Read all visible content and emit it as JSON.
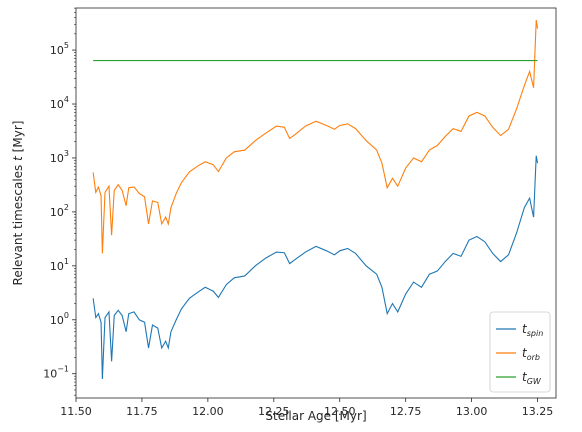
{
  "chart_data": {
    "type": "line",
    "xlabel": "Stellar Age [Myr]",
    "ylabel": "Relevant timescales",
    "ylabel_var": "t",
    "ylabel_unit": "[Myr]",
    "xlim": [
      11.5,
      13.32
    ],
    "ylim_log10": [
      -1.45,
      5.78
    ],
    "y_scale": "log",
    "grid": false,
    "legend_position": "lower-right",
    "x_ticks": [
      11.5,
      11.75,
      12.0,
      12.25,
      12.5,
      12.75,
      13.0,
      13.25
    ],
    "x_tick_labels": [
      "11.50",
      "11.75",
      "12.00",
      "12.25",
      "12.50",
      "12.75",
      "13.00",
      "13.25"
    ],
    "y_ticks_exp": [
      -1,
      0,
      1,
      2,
      3,
      4,
      5
    ],
    "y_tick_base": "10",
    "series": [
      {
        "name": "t",
        "subscript": "spin",
        "color": "#1f77b4",
        "points": [
          [
            11.565,
            2.5
          ],
          [
            11.575,
            1.1
          ],
          [
            11.585,
            1.3
          ],
          [
            11.595,
            0.9
          ],
          [
            11.6,
            0.08
          ],
          [
            11.61,
            1.1
          ],
          [
            11.625,
            1.4
          ],
          [
            11.635,
            0.17
          ],
          [
            11.645,
            1.2
          ],
          [
            11.66,
            1.5
          ],
          [
            11.675,
            1.2
          ],
          [
            11.69,
            0.6
          ],
          [
            11.7,
            1.3
          ],
          [
            11.72,
            1.4
          ],
          [
            11.74,
            1.0
          ],
          [
            11.76,
            0.9
          ],
          [
            11.775,
            0.3
          ],
          [
            11.79,
            0.8
          ],
          [
            11.81,
            0.7
          ],
          [
            11.825,
            0.3
          ],
          [
            11.84,
            0.4
          ],
          [
            11.85,
            0.3
          ],
          [
            11.86,
            0.6
          ],
          [
            11.88,
            1.0
          ],
          [
            11.9,
            1.6
          ],
          [
            11.93,
            2.5
          ],
          [
            11.96,
            3.2
          ],
          [
            11.99,
            4.0
          ],
          [
            12.02,
            3.4
          ],
          [
            12.04,
            2.6
          ],
          [
            12.07,
            4.5
          ],
          [
            12.1,
            6.0
          ],
          [
            12.14,
            6.5
          ],
          [
            12.18,
            10.0
          ],
          [
            12.22,
            14.0
          ],
          [
            12.26,
            18.0
          ],
          [
            12.29,
            17.5
          ],
          [
            12.31,
            11.0
          ],
          [
            12.33,
            13.0
          ],
          [
            12.37,
            18.0
          ],
          [
            12.41,
            23.0
          ],
          [
            12.45,
            19.0
          ],
          [
            12.48,
            16.0
          ],
          [
            12.5,
            19.0
          ],
          [
            12.53,
            21.0
          ],
          [
            12.56,
            17.0
          ],
          [
            12.6,
            10.0
          ],
          [
            12.64,
            7.0
          ],
          [
            12.66,
            4.0
          ],
          [
            12.68,
            1.3
          ],
          [
            12.7,
            2.0
          ],
          [
            12.72,
            1.4
          ],
          [
            12.75,
            3.0
          ],
          [
            12.78,
            5.0
          ],
          [
            12.81,
            4.0
          ],
          [
            12.84,
            7.0
          ],
          [
            12.87,
            8.0
          ],
          [
            12.9,
            12.0
          ],
          [
            12.93,
            17.0
          ],
          [
            12.96,
            15.0
          ],
          [
            12.99,
            30.0
          ],
          [
            13.02,
            35.0
          ],
          [
            13.05,
            28.0
          ],
          [
            13.08,
            17.0
          ],
          [
            13.11,
            12.0
          ],
          [
            13.14,
            16.0
          ],
          [
            13.17,
            40.0
          ],
          [
            13.2,
            120.0
          ],
          [
            13.22,
            180.0
          ],
          [
            13.235,
            80.0
          ],
          [
            13.245,
            1100.0
          ],
          [
            13.25,
            800.0
          ]
        ]
      },
      {
        "name": "t",
        "subscript": "orb",
        "color": "#ff7f0e",
        "points": [
          [
            11.565,
            540.0
          ],
          [
            11.575,
            230.0
          ],
          [
            11.585,
            290.0
          ],
          [
            11.595,
            200.0
          ],
          [
            11.6,
            17.0
          ],
          [
            11.61,
            230.0
          ],
          [
            11.625,
            300.0
          ],
          [
            11.635,
            37.0
          ],
          [
            11.645,
            250.0
          ],
          [
            11.66,
            320.0
          ],
          [
            11.675,
            250.0
          ],
          [
            11.69,
            130.0
          ],
          [
            11.7,
            280.0
          ],
          [
            11.72,
            290.0
          ],
          [
            11.74,
            220.0
          ],
          [
            11.76,
            190.0
          ],
          [
            11.775,
            60.0
          ],
          [
            11.79,
            160.0
          ],
          [
            11.81,
            150.0
          ],
          [
            11.825,
            60.0
          ],
          [
            11.84,
            80.0
          ],
          [
            11.85,
            60.0
          ],
          [
            11.86,
            120.0
          ],
          [
            11.88,
            220.0
          ],
          [
            11.9,
            350.0
          ],
          [
            11.93,
            550.0
          ],
          [
            11.96,
            700.0
          ],
          [
            11.99,
            850.0
          ],
          [
            12.02,
            750.0
          ],
          [
            12.04,
            560.0
          ],
          [
            12.07,
            1000.0
          ],
          [
            12.1,
            1300.0
          ],
          [
            12.14,
            1400.0
          ],
          [
            12.18,
            2100.0
          ],
          [
            12.22,
            2900.0
          ],
          [
            12.26,
            3900.0
          ],
          [
            12.29,
            3700.0
          ],
          [
            12.31,
            2300.0
          ],
          [
            12.33,
            2700.0
          ],
          [
            12.37,
            3900.0
          ],
          [
            12.41,
            4800.0
          ],
          [
            12.45,
            4000.0
          ],
          [
            12.48,
            3400.0
          ],
          [
            12.5,
            4000.0
          ],
          [
            12.53,
            4300.0
          ],
          [
            12.56,
            3500.0
          ],
          [
            12.6,
            2100.0
          ],
          [
            12.64,
            1400.0
          ],
          [
            12.66,
            800.0
          ],
          [
            12.68,
            280.0
          ],
          [
            12.7,
            420.0
          ],
          [
            12.72,
            300.0
          ],
          [
            12.75,
            650.0
          ],
          [
            12.78,
            1000.0
          ],
          [
            12.81,
            850.0
          ],
          [
            12.84,
            1400.0
          ],
          [
            12.87,
            1700.0
          ],
          [
            12.9,
            2500.0
          ],
          [
            12.93,
            3500.0
          ],
          [
            12.96,
            3100.0
          ],
          [
            12.99,
            6000.0
          ],
          [
            13.02,
            7000.0
          ],
          [
            13.05,
            6000.0
          ],
          [
            13.08,
            3700.0
          ],
          [
            13.11,
            2600.0
          ],
          [
            13.14,
            3400.0
          ],
          [
            13.17,
            8000.0
          ],
          [
            13.2,
            22000.0
          ],
          [
            13.22,
            40000.0
          ],
          [
            13.235,
            20000.0
          ],
          [
            13.245,
            360000.0
          ],
          [
            13.25,
            250000.0
          ]
        ]
      },
      {
        "name": "t",
        "subscript": "GW",
        "color": "#2ca02c",
        "points": [
          [
            11.565,
            64000.0
          ],
          [
            11.7,
            64000.0
          ],
          [
            11.9,
            64000.0
          ],
          [
            12.1,
            64000.0
          ],
          [
            12.3,
            64000.0
          ],
          [
            12.5,
            64000.0
          ],
          [
            12.7,
            64000.0
          ],
          [
            12.9,
            64000.0
          ],
          [
            13.1,
            64000.0
          ],
          [
            13.25,
            64000.0
          ]
        ]
      }
    ]
  }
}
